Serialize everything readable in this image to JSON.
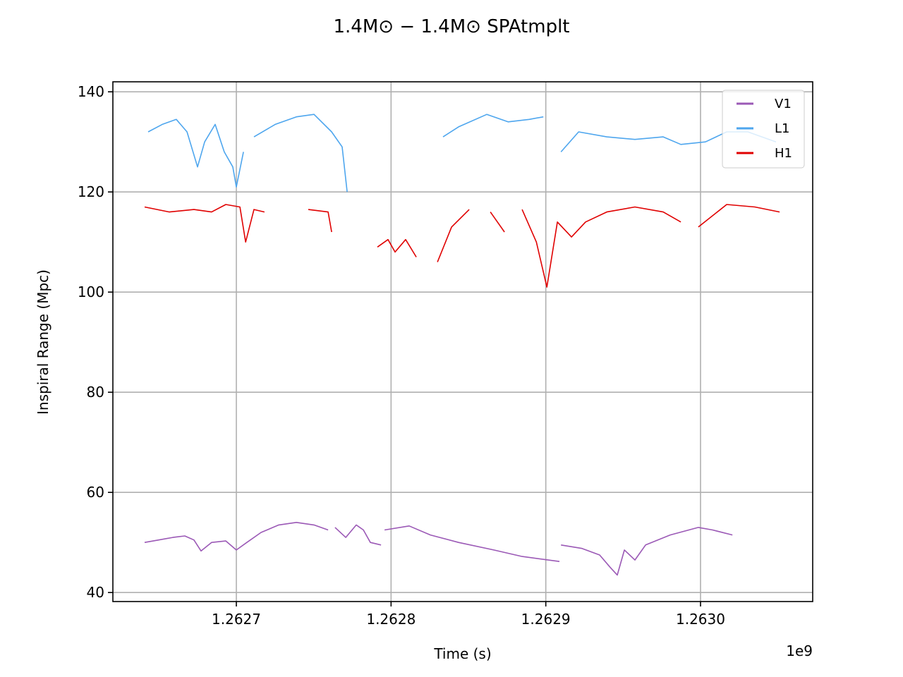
{
  "chart_data": {
    "type": "line",
    "title": "1.4M⊙ − 1.4M⊙ SPAtmplt",
    "x_label": "Time (s)",
    "y_label": "Inspiral Range (Mpc)",
    "x_offset_text": "1e9",
    "xlim": [
      1262620200,
      1263072500
    ],
    "ylim": [
      38.2,
      142
    ],
    "xticks": [
      {
        "value": 1262700000,
        "label": "1.2627"
      },
      {
        "value": 1262800000,
        "label": "1.2628"
      },
      {
        "value": 1262900000,
        "label": "1.2629"
      },
      {
        "value": 1263000000,
        "label": "1.2630"
      }
    ],
    "yticks": [
      40,
      60,
      80,
      100,
      120,
      140
    ],
    "grid": true,
    "legend": "upper right",
    "series": [
      {
        "name": "V1",
        "color": "#9b59b6",
        "x": [
          1262640700,
          1262649800,
          1262658900,
          1262666700,
          1262672600,
          1262677200,
          1262684000,
          1262693200,
          1262700000,
          1262706800,
          1262716000,
          1262727400,
          1262738800,
          1262750200,
          1262759300,
          null,
          1262763800,
          1262770700,
          1262777500,
          1262782100,
          1262786600,
          1262793500,
          null,
          1262795800,
          1262811700,
          1262825400,
          1262843600,
          1262866400,
          1262884700,
          1262908800,
          null,
          1262909800,
          1262923400,
          1262934800,
          1262941700,
          1262946200,
          1262950800,
          1262957600,
          1262964500,
          1262980400,
          1262998600,
          1263007800,
          1263020600
        ],
        "values": [
          50,
          50.5,
          51,
          51.3,
          50.5,
          48.3,
          50,
          50.3,
          48.5,
          50,
          52,
          53.5,
          54,
          53.5,
          52.5,
          null,
          53,
          51,
          53.5,
          52.5,
          50,
          49.5,
          null,
          52.5,
          53.3,
          51.5,
          50,
          48.5,
          47.2,
          46.2,
          null,
          49.5,
          48.8,
          47.5,
          45,
          43.5,
          48.5,
          46.5,
          49.5,
          51.5,
          53,
          52.5,
          51.5
        ]
      },
      {
        "name": "L1",
        "color": "#4ea6ee",
        "x": [
          1262643000,
          1262652100,
          1262661200,
          1262668100,
          1262674900,
          1262679500,
          1262686300,
          1262692200,
          1262697700,
          1262700000,
          1262704600,
          null,
          1262711400,
          1262725100,
          1262738800,
          1262750200,
          1262761600,
          1262768400,
          1262771600,
          null,
          1262833600,
          1262843600,
          1262861900,
          1262875600,
          1262889300,
          1262898400,
          null,
          1262909800,
          1262921200,
          1262939400,
          1262957600,
          1262975900,
          1262987300,
          1263003200,
          1263016900,
          1263030600,
          1263048800
        ],
        "values": [
          132,
          133.5,
          134.5,
          132,
          125,
          130,
          133.5,
          128,
          125,
          121,
          128,
          null,
          131,
          133.5,
          135,
          135.5,
          132,
          129,
          120,
          null,
          131,
          133,
          135.5,
          134,
          134.5,
          135,
          null,
          128,
          132,
          131,
          130.5,
          131,
          129.5,
          130,
          132,
          132,
          130
        ]
      },
      {
        "name": "H1",
        "color": "#e00000",
        "x": [
          1262640700,
          1262656700,
          1262672600,
          1262684000,
          1262693200,
          1262702300,
          1262706000,
          1262711400,
          1262718200,
          null,
          1262746500,
          1262759300,
          1262761600,
          null,
          1262791200,
          1262798000,
          1262802600,
          1262809400,
          1262816300,
          null,
          1262830000,
          1262839100,
          1262850500,
          null,
          1262864200,
          1262873300,
          null,
          1262884700,
          1262893900,
          1262900700,
          1262907500,
          1262916600,
          1262925700,
          1262939400,
          1262957600,
          1262975900,
          1262987300,
          null,
          1262998600,
          1263016900,
          1263035100,
          1263051100
        ],
        "values": [
          117,
          116,
          116.5,
          116,
          117.5,
          117,
          110,
          116.5,
          116,
          null,
          116.5,
          116,
          112,
          null,
          109,
          110.5,
          108,
          110.5,
          107,
          null,
          106,
          113,
          116.5,
          null,
          116,
          112,
          null,
          116.5,
          110,
          101,
          114,
          111,
          114,
          116,
          117,
          116,
          114,
          null,
          113,
          117.5,
          117,
          116
        ]
      }
    ]
  }
}
